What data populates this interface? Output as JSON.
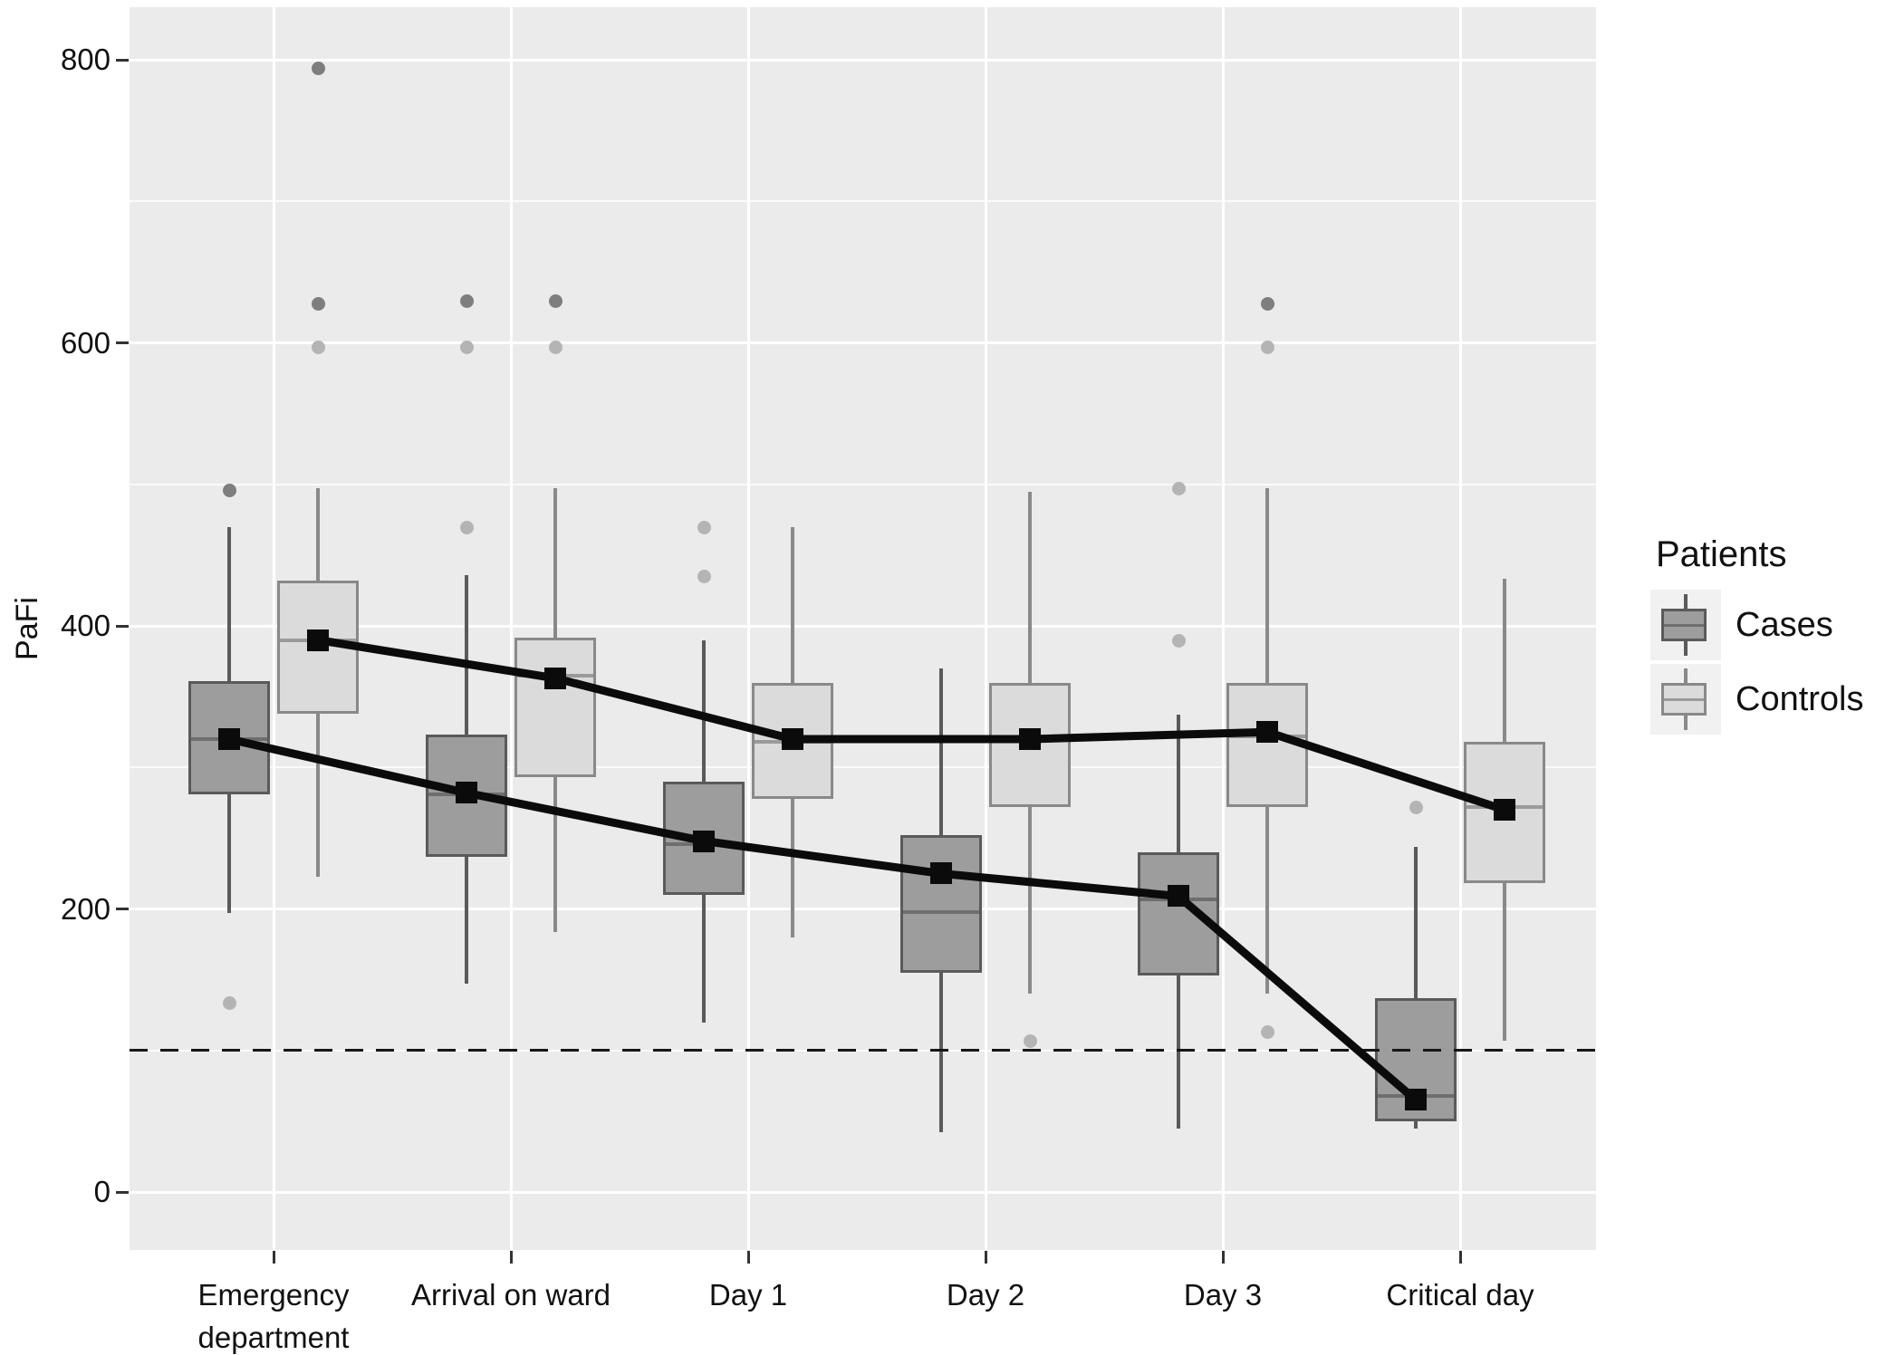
{
  "figure": {
    "kind": "grouped boxplot with mean lines (ggplot style)"
  },
  "legend": {
    "title": "Patients",
    "items": [
      {
        "label": "Cases"
      },
      {
        "label": "Controls"
      }
    ]
  },
  "axis": {
    "y_label": "PaFi"
  },
  "colors": {
    "panel_bg": "#ebebeb",
    "grid": "#ffffff",
    "mean_line": "#0b0b0b",
    "outlier_dark": "#7e7e7e",
    "outlier_light": "#b4b4b4",
    "key_bg": "#f1f1f1",
    "text": "#1a1a1a",
    "tick": "#333333"
  },
  "chart_data": {
    "type": "boxplot",
    "title": "",
    "xlabel": "",
    "ylabel": "PaFi",
    "y_ticks": [
      0,
      200,
      400,
      600,
      800
    ],
    "y_minor_ticks": [
      100,
      300,
      500,
      700
    ],
    "ylim": [
      -40,
      840
    ],
    "grid": "white major+minor gridlines on gray panel",
    "legend_position": "right",
    "reference_line": {
      "y": 100,
      "style": "dashed",
      "color": "#161616"
    },
    "categories": [
      [
        "Emergency",
        "department"
      ],
      [
        "Arrival on ward"
      ],
      [
        "Day 1"
      ],
      [
        "Day 2"
      ],
      [
        "Day 3"
      ],
      [
        "Critical day"
      ]
    ],
    "series": [
      {
        "name": "Cases",
        "fill": "#9d9d9d",
        "stroke": "#5a5a5a",
        "median_color": "#6e6e6e",
        "mean_values": [
          320,
          282,
          248,
          225,
          209,
          65
        ],
        "boxes": [
          {
            "category": "Emergency department",
            "whisker_low": 197,
            "q1": 281,
            "median": 320,
            "q3": 361,
            "whisker_high": 470,
            "mean": 320,
            "outliers": [
              {
                "value": 496,
                "shade": "dark"
              },
              {
                "value": 134,
                "shade": "light"
              }
            ]
          },
          {
            "category": "Arrival on ward",
            "whisker_low": 147,
            "q1": 237,
            "median": 281,
            "q3": 323,
            "whisker_high": 436,
            "mean": 282,
            "outliers": [
              {
                "value": 630,
                "shade": "dark"
              },
              {
                "value": 597,
                "shade": "light"
              },
              {
                "value": 470,
                "shade": "light"
              }
            ]
          },
          {
            "category": "Day 1",
            "whisker_low": 120,
            "q1": 210,
            "median": 246,
            "q3": 290,
            "whisker_high": 390,
            "mean": 248,
            "outliers": [
              {
                "value": 470,
                "shade": "light"
              },
              {
                "value": 435,
                "shade": "light"
              }
            ]
          },
          {
            "category": "Day 2",
            "whisker_low": 42,
            "q1": 155,
            "median": 198,
            "q3": 252,
            "whisker_high": 370,
            "mean": 225,
            "outliers": []
          },
          {
            "category": "Day 3",
            "whisker_low": 45,
            "q1": 153,
            "median": 207,
            "q3": 240,
            "whisker_high": 337,
            "mean": 209,
            "outliers": [
              {
                "value": 497,
                "shade": "light"
              },
              {
                "value": 390,
                "shade": "light"
              }
            ]
          },
          {
            "category": "Critical day",
            "whisker_low": 45,
            "q1": 50,
            "median": 68,
            "q3": 137,
            "whisker_high": 244,
            "mean": 65,
            "outliers": [
              {
                "value": 272,
                "shade": "light"
              }
            ]
          }
        ]
      },
      {
        "name": "Controls",
        "fill": "#dbdbdb",
        "stroke": "#898989",
        "median_color": "#9a9a9a",
        "mean_values": [
          390,
          363,
          320,
          320,
          325,
          270
        ],
        "boxes": [
          {
            "category": "Emergency department",
            "whisker_low": 223,
            "q1": 338,
            "median": 390,
            "q3": 432,
            "whisker_high": 497,
            "mean": 390,
            "outliers": [
              {
                "value": 794,
                "shade": "dark"
              },
              {
                "value": 628,
                "shade": "dark"
              },
              {
                "value": 597,
                "shade": "light"
              }
            ]
          },
          {
            "category": "Arrival on ward",
            "whisker_low": 184,
            "q1": 293,
            "median": 365,
            "q3": 392,
            "whisker_high": 497,
            "mean": 363,
            "outliers": [
              {
                "value": 630,
                "shade": "dark"
              },
              {
                "value": 597,
                "shade": "light"
              }
            ]
          },
          {
            "category": "Day 1",
            "whisker_low": 180,
            "q1": 278,
            "median": 318,
            "q3": 360,
            "whisker_high": 470,
            "mean": 320,
            "outliers": []
          },
          {
            "category": "Day 2",
            "whisker_low": 140,
            "q1": 272,
            "median": 321,
            "q3": 360,
            "whisker_high": 495,
            "mean": 320,
            "outliers": [
              {
                "value": 107,
                "shade": "light"
              }
            ]
          },
          {
            "category": "Day 3",
            "whisker_low": 140,
            "q1": 272,
            "median": 322,
            "q3": 360,
            "whisker_high": 497,
            "mean": 325,
            "outliers": [
              {
                "value": 628,
                "shade": "dark"
              },
              {
                "value": 597,
                "shade": "light"
              },
              {
                "value": 113,
                "shade": "light"
              }
            ]
          },
          {
            "category": "Critical day",
            "whisker_low": 107,
            "q1": 218,
            "median": 272,
            "q3": 318,
            "whisker_high": 433,
            "mean": 270,
            "outliers": []
          }
        ]
      }
    ]
  }
}
